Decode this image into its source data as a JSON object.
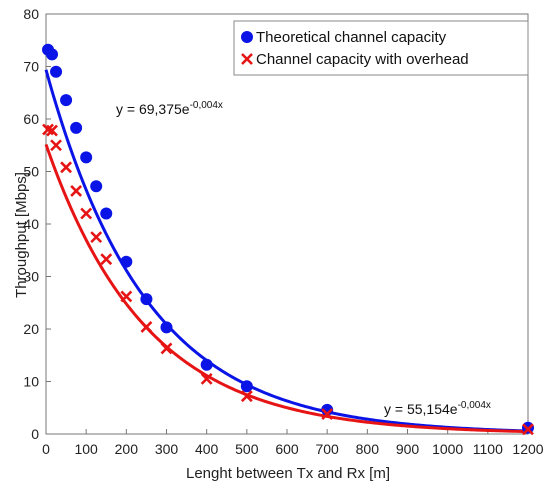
{
  "chart_data": {
    "type": "scatter",
    "title": "",
    "xlabel": "Lenght between Tx and Rx [m]",
    "ylabel": "Throughput [Mbps]",
    "xlim": [
      0,
      1200
    ],
    "ylim": [
      0,
      80
    ],
    "x_ticks": [
      "0",
      "100",
      "200",
      "300",
      "400",
      "500",
      "600",
      "700",
      "800",
      "900",
      "1000",
      "1100",
      "1200"
    ],
    "y_ticks": [
      "0",
      "10",
      "20",
      "30",
      "40",
      "50",
      "60",
      "70",
      "80"
    ],
    "grid": false,
    "legend_position": "top-right",
    "series": [
      {
        "name": "Theoretical channel capacity",
        "marker": "circle",
        "color": "#0a14e6",
        "points": [
          [
            5,
            73.2
          ],
          [
            15,
            72.3
          ],
          [
            25,
            69.0
          ],
          [
            50,
            63.6
          ],
          [
            75,
            58.3
          ],
          [
            100,
            52.7
          ],
          [
            125,
            47.2
          ],
          [
            150,
            42.0
          ],
          [
            200,
            32.8
          ],
          [
            250,
            25.7
          ],
          [
            300,
            20.3
          ],
          [
            400,
            13.2
          ],
          [
            500,
            9.1
          ],
          [
            700,
            4.6
          ],
          [
            1200,
            1.2
          ]
        ],
        "trendline": {
          "type": "exponential",
          "a": 69.375,
          "b": -0.004,
          "equation": "y = 69,375e",
          "exponent": "-0,004x"
        }
      },
      {
        "name": "Channel capacity with overhead",
        "marker": "x",
        "color": "#e61414",
        "points": [
          [
            5,
            58.0
          ],
          [
            15,
            57.8
          ],
          [
            25,
            55.0
          ],
          [
            50,
            50.8
          ],
          [
            75,
            46.3
          ],
          [
            100,
            42.0
          ],
          [
            125,
            37.5
          ],
          [
            150,
            33.3
          ],
          [
            200,
            26.2
          ],
          [
            250,
            20.4
          ],
          [
            300,
            16.3
          ],
          [
            400,
            10.5
          ],
          [
            500,
            7.2
          ],
          [
            700,
            3.8
          ],
          [
            1200,
            0.9
          ]
        ],
        "trendline": {
          "type": "exponential",
          "a": 55.154,
          "b": -0.004,
          "equation": "y = 55,154e",
          "exponent": "-0,004x"
        }
      }
    ]
  }
}
